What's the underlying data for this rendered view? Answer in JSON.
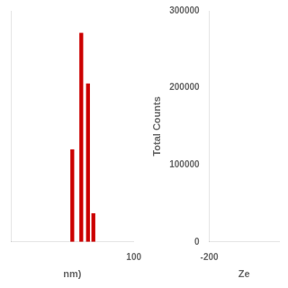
{
  "chart_data": [
    {
      "type": "bar",
      "x": [
        10.0,
        14.0,
        18.0,
        22.0,
        30.0
      ],
      "values": [
        0.42,
        0.95,
        0.72,
        0.13,
        0.0
      ],
      "color": "#cc0000",
      "log": "x",
      "xlim": [
        1,
        100
      ],
      "xticks": [
        100
      ],
      "ylim": [
        0,
        1.05
      ],
      "xlabel": "nm)",
      "tick_labels": "x",
      "grid": false
    },
    {
      "type": "scatter",
      "xlim": [
        -200,
        200
      ],
      "xticks": [
        -200
      ],
      "ylim": [
        0,
        300000
      ],
      "yticks": [
        0,
        100000,
        200000,
        300000
      ],
      "xlabel": "Ze",
      "ylabel": "Total Counts",
      "grid": false
    }
  ]
}
